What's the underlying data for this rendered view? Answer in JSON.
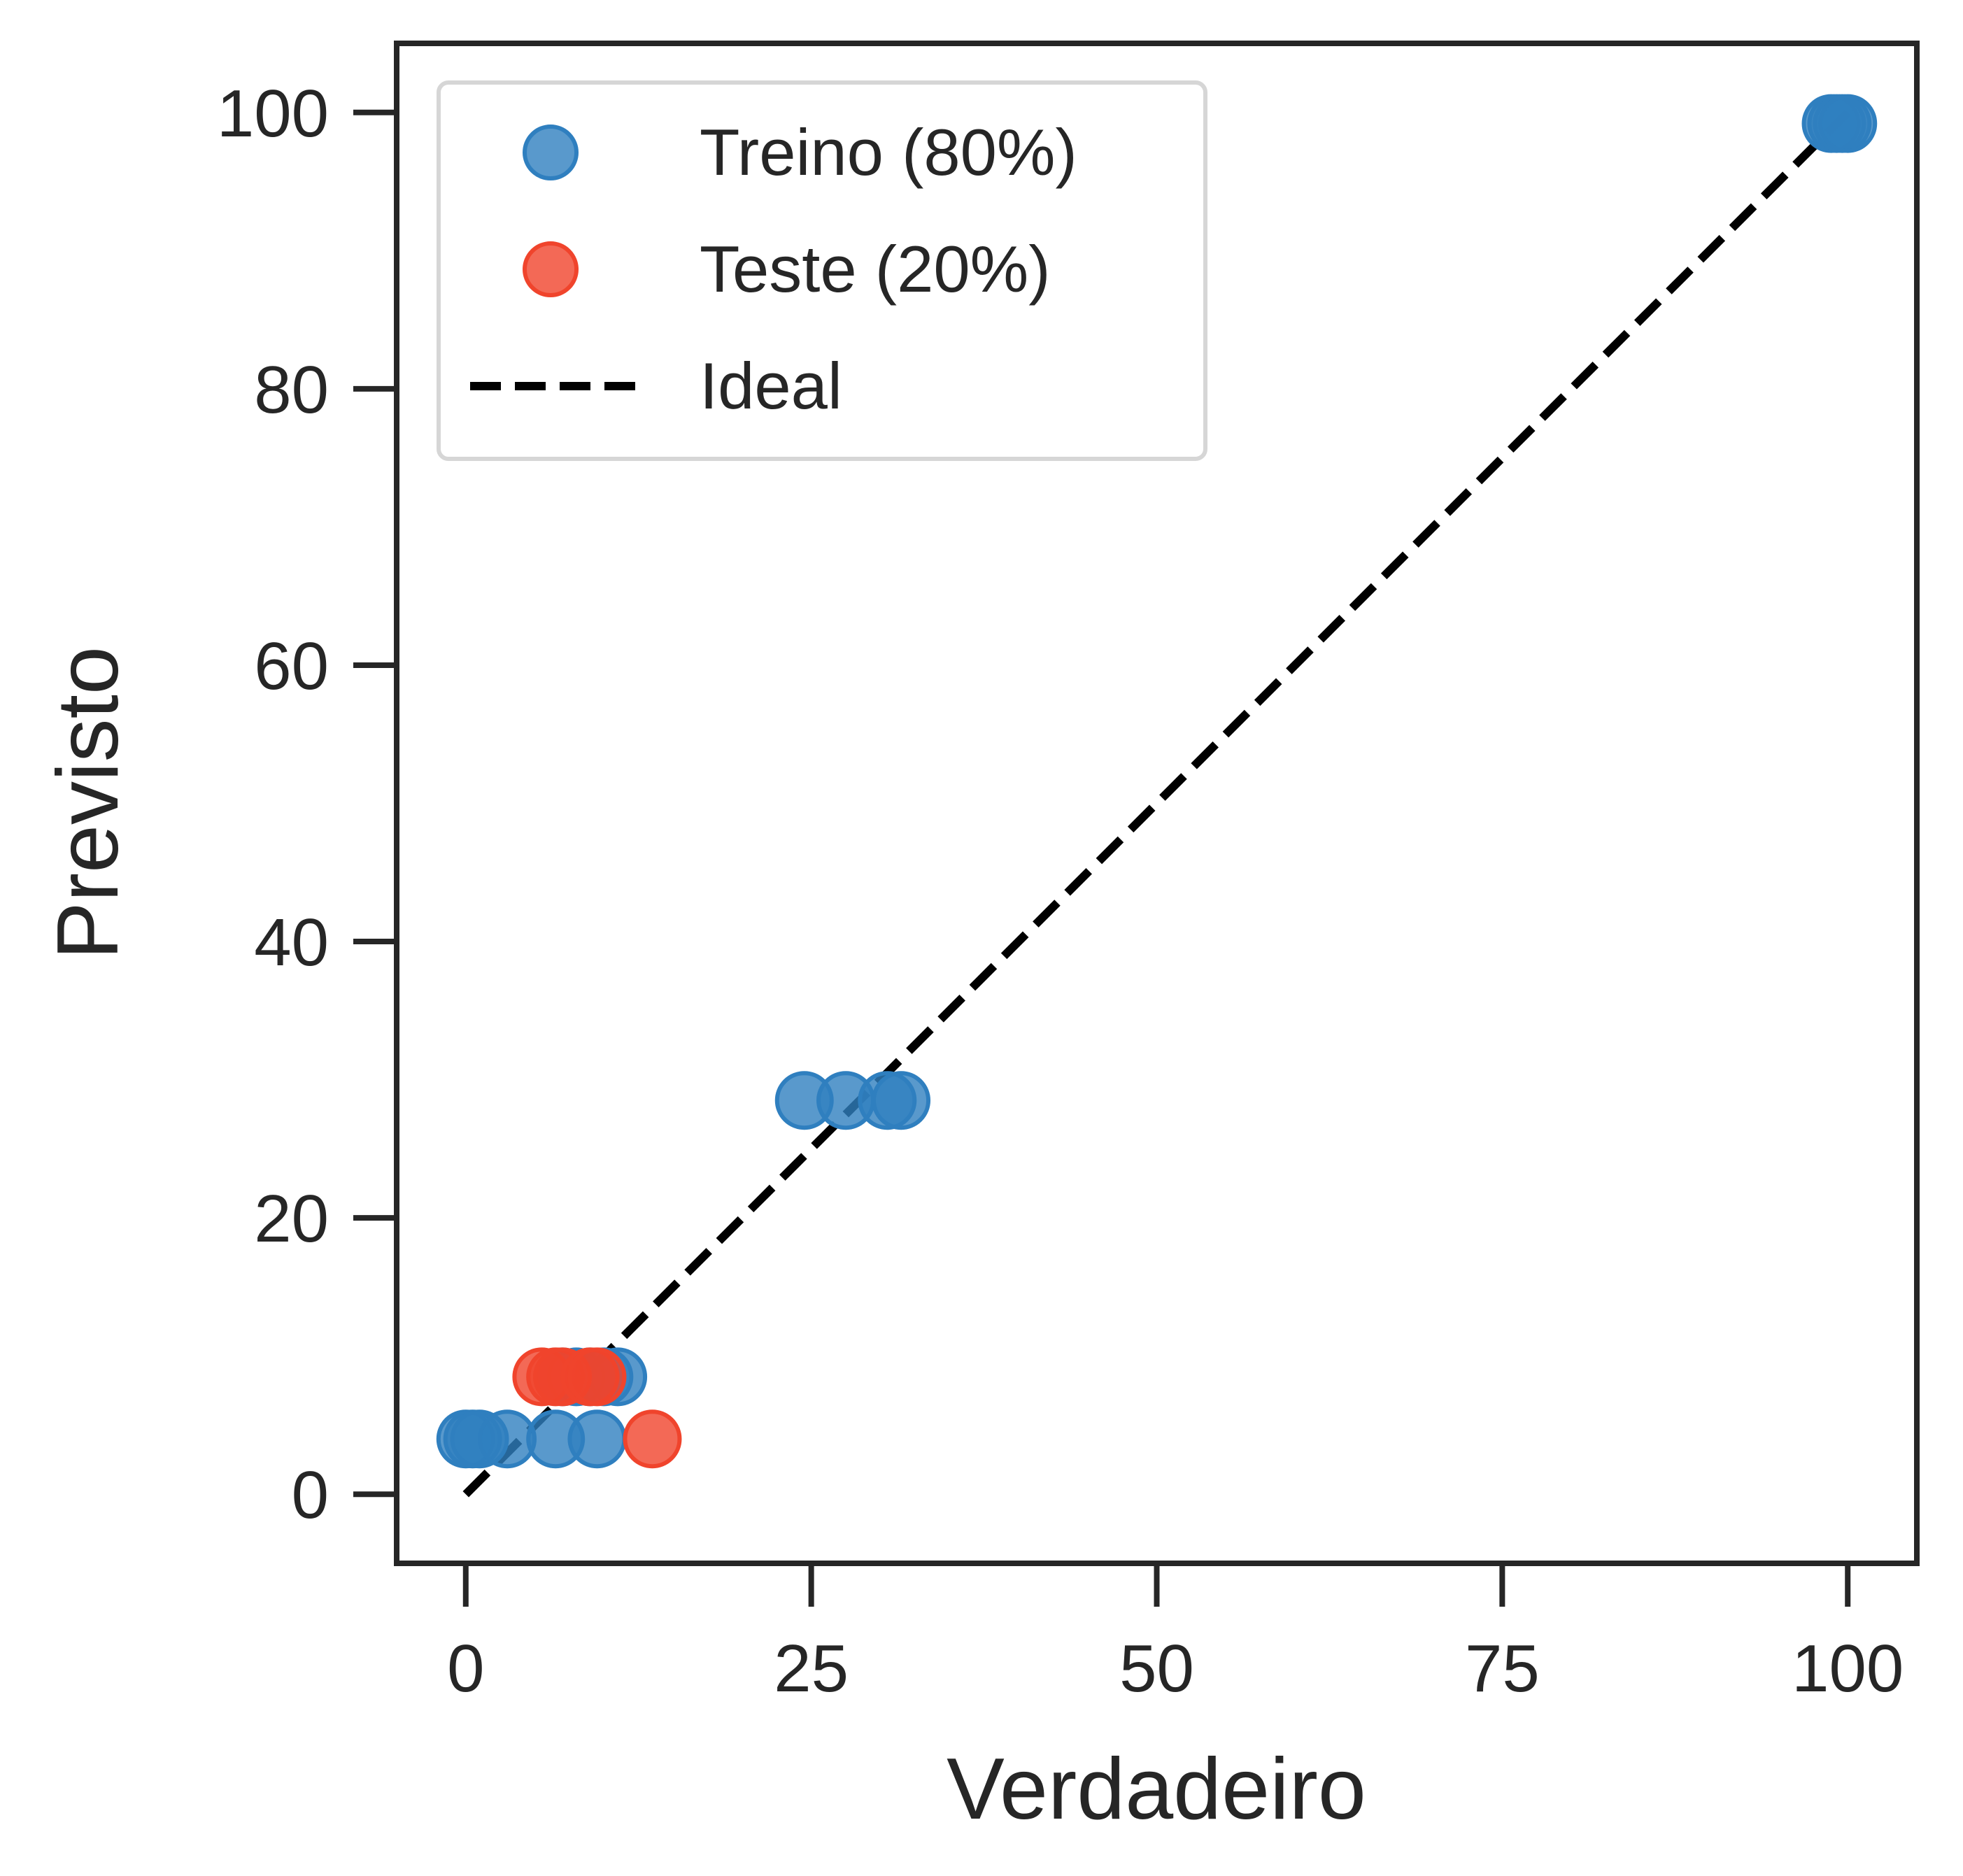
{
  "chart_data": {
    "type": "scatter",
    "xlabel": "Verdadeiro",
    "ylabel": "Previsto",
    "xlim": [
      -5,
      105
    ],
    "ylim": [
      -5,
      105
    ],
    "xticks": [
      0,
      25,
      50,
      75,
      100
    ],
    "yticks": [
      0,
      20,
      40,
      60,
      80,
      100
    ],
    "grid": false,
    "legend_position": "top-left",
    "series": [
      {
        "name": "Treino (80%)",
        "color": "#2f7fbf",
        "points": [
          {
            "x": 0,
            "y": 4
          },
          {
            "x": 0.5,
            "y": 4
          },
          {
            "x": 1,
            "y": 4
          },
          {
            "x": 3,
            "y": 4
          },
          {
            "x": 6.5,
            "y": 4
          },
          {
            "x": 9.5,
            "y": 4
          },
          {
            "x": 7,
            "y": 8.5
          },
          {
            "x": 8,
            "y": 8.5
          },
          {
            "x": 9,
            "y": 8.5
          },
          {
            "x": 10,
            "y": 8.5
          },
          {
            "x": 11,
            "y": 8.5
          },
          {
            "x": 24.5,
            "y": 28.5
          },
          {
            "x": 27.5,
            "y": 28.5
          },
          {
            "x": 30.5,
            "y": 28.5
          },
          {
            "x": 31.5,
            "y": 28.5
          },
          {
            "x": 98.8,
            "y": 99.2
          },
          {
            "x": 99.2,
            "y": 99.2
          },
          {
            "x": 99.6,
            "y": 99.2
          },
          {
            "x": 100,
            "y": 99.2
          }
        ]
      },
      {
        "name": "Teste (20%)",
        "color": "#f0442c",
        "points": [
          {
            "x": 5.5,
            "y": 8.5
          },
          {
            "x": 6.5,
            "y": 8.5
          },
          {
            "x": 7,
            "y": 8.5
          },
          {
            "x": 9,
            "y": 8.5
          },
          {
            "x": 9.5,
            "y": 8.5
          },
          {
            "x": 13.5,
            "y": 4
          }
        ]
      }
    ],
    "reference_line": {
      "name": "Ideal",
      "color": "#000000",
      "style": "dashed",
      "points": [
        [
          0,
          0
        ],
        [
          100,
          100
        ]
      ]
    }
  }
}
